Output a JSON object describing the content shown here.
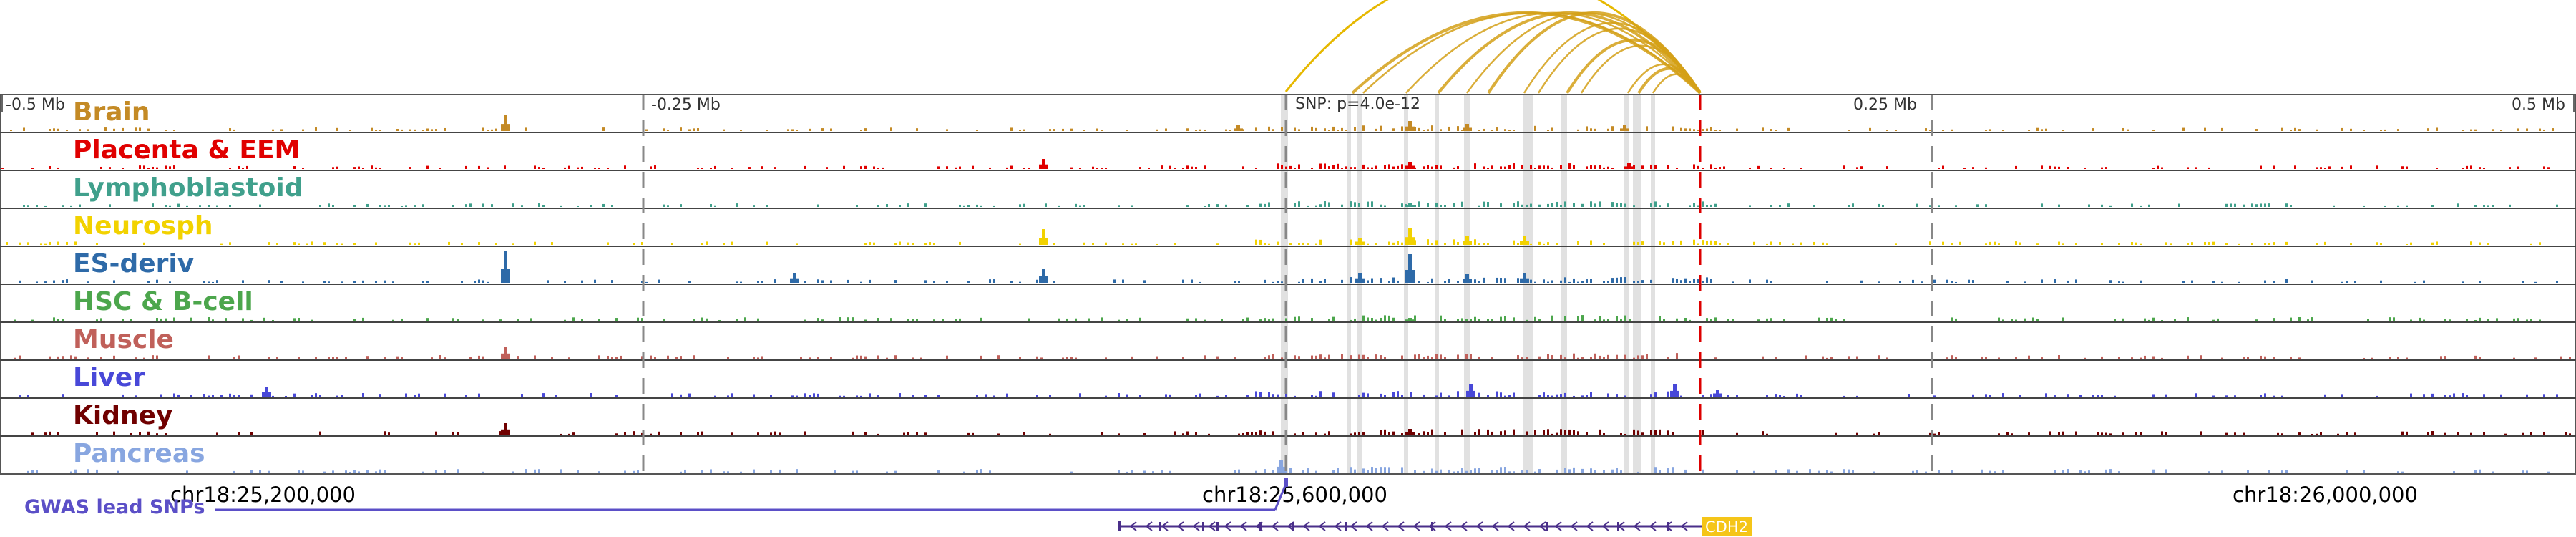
{
  "colors": {
    "arc": "#d4a017",
    "arc_strong": "#e6b800",
    "snp_line": "#888888",
    "tss_line": "#dd0000",
    "highlight": "#d9d9d9",
    "gene_box": "#f5c518",
    "gene_line": "#4a2f8a",
    "gwas": "#5b4fc7"
  },
  "ruler": {
    "labels": [
      "-0.5 Mb",
      "-0.25 Mb",
      "0.25 Mb",
      "0.5 Mb"
    ],
    "snp_label": "SNP: p=4.0e-12"
  },
  "tracks": [
    {
      "name": "Brain",
      "color": "#c48a25"
    },
    {
      "name": "Placenta & EEM",
      "color": "#e00000"
    },
    {
      "name": "Lymphoblastoid",
      "color": "#40a08c"
    },
    {
      "name": "Neurosph",
      "color": "#f2d200"
    },
    {
      "name": "ES-deriv",
      "color": "#2e6aa8"
    },
    {
      "name": "HSC & B-cell",
      "color": "#4ca64c"
    },
    {
      "name": "Muscle",
      "color": "#c0605a"
    },
    {
      "name": "Liver",
      "color": "#4848d8"
    },
    {
      "name": "Kidney",
      "color": "#700000"
    },
    {
      "name": "Pancreas",
      "color": "#88a6e0"
    }
  ],
  "coordinates": [
    "chr18:25,200,000",
    "chr18:25,600,000",
    "chr18:26,000,000"
  ],
  "gwas_label": "GWAS lead SNPs",
  "gene": {
    "name": "CDH2"
  }
}
